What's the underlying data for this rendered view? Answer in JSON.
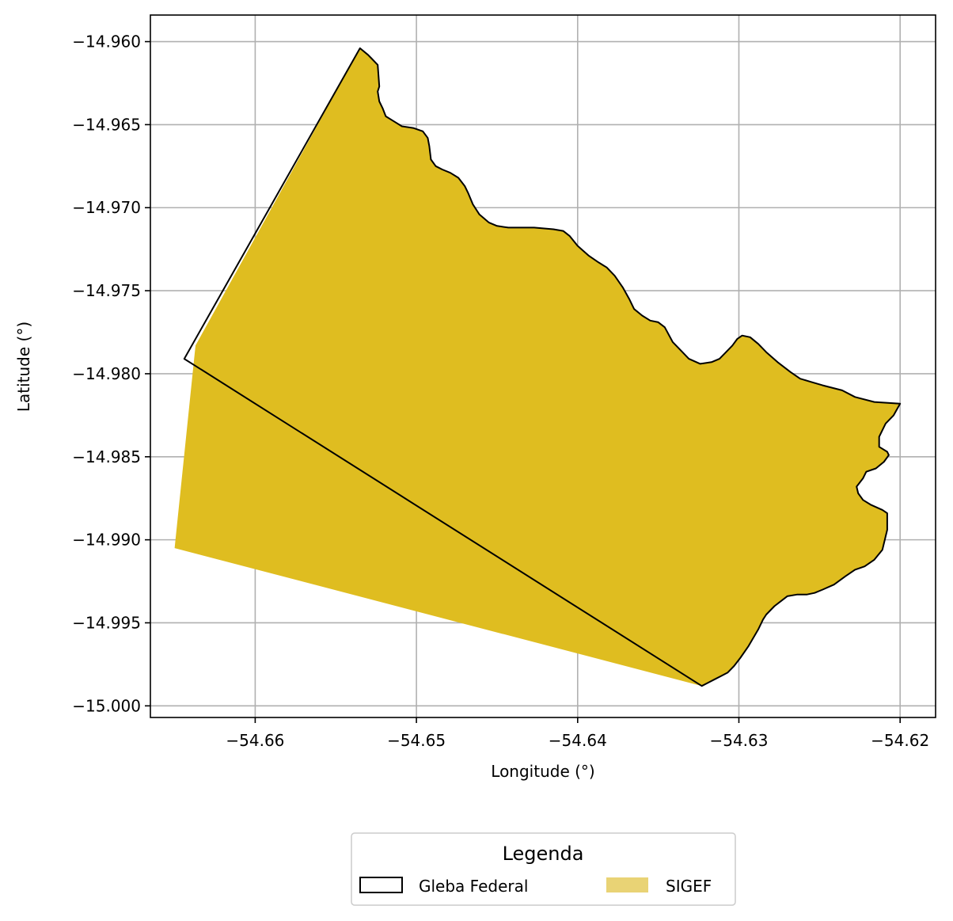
{
  "chart_data": {
    "type": "map",
    "xlabel": "Longitude (°)",
    "ylabel": "Latitude (°)",
    "xlim": [
      -54.6665,
      -54.6178
    ],
    "ylim": [
      -15.0007,
      -14.9584
    ],
    "x_ticks": [
      -54.66,
      -54.65,
      -54.64,
      -54.63,
      -54.62
    ],
    "x_tick_labels": [
      "−54.66",
      "−54.65",
      "−54.64",
      "−54.63",
      "−54.62"
    ],
    "y_ticks": [
      -14.96,
      -14.965,
      -14.97,
      -14.975,
      -14.98,
      -14.985,
      -14.99,
      -14.995,
      -15.0
    ],
    "y_tick_labels": [
      "−14.960",
      "−14.965",
      "−14.970",
      "−14.975",
      "−14.980",
      "−14.985",
      "−14.990",
      "−14.995",
      "−15.000"
    ],
    "grid": true,
    "legend": {
      "title": "Legenda",
      "placement": "bottom-center",
      "entries": [
        {
          "name": "Gleba Federal",
          "style": "outline",
          "color": "#000000"
        },
        {
          "name": "SIGEF",
          "style": "fill",
          "color": "#e9d375"
        }
      ]
    },
    "colors": {
      "sigef_fill": "#dfbd20",
      "gleba_edge": "#000000",
      "grid": "#b0b0b0"
    },
    "northeast_boundary": [
      [
        -54.6535,
        -14.9604
      ],
      [
        -54.653,
        -14.9608
      ],
      [
        -54.6528,
        -14.961
      ],
      [
        -54.6524,
        -14.9614
      ],
      [
        -54.6523,
        -14.9627
      ],
      [
        -54.6524,
        -14.963
      ],
      [
        -54.6523,
        -14.9636
      ],
      [
        -54.6521,
        -14.964
      ],
      [
        -54.6519,
        -14.9645
      ],
      [
        -54.6514,
        -14.9648
      ],
      [
        -54.6509,
        -14.9651
      ],
      [
        -54.6502,
        -14.9652
      ],
      [
        -54.6496,
        -14.9654
      ],
      [
        -54.6493,
        -14.9658
      ],
      [
        -54.6492,
        -14.9663
      ],
      [
        -54.6491,
        -14.9671
      ],
      [
        -54.6488,
        -14.9675
      ],
      [
        -54.6484,
        -14.9677
      ],
      [
        -54.6479,
        -14.9679
      ],
      [
        -54.6474,
        -14.9682
      ],
      [
        -54.647,
        -14.9687
      ],
      [
        -54.6468,
        -14.9691
      ],
      [
        -54.6465,
        -14.9698
      ],
      [
        -54.6461,
        -14.9704
      ],
      [
        -54.6455,
        -14.9709
      ],
      [
        -54.645,
        -14.9711
      ],
      [
        -54.6443,
        -14.9712
      ],
      [
        -54.6427,
        -14.9712
      ],
      [
        -54.6415,
        -14.9713
      ],
      [
        -54.6409,
        -14.9714
      ],
      [
        -54.6405,
        -14.9717
      ],
      [
        -54.64,
        -14.9723
      ],
      [
        -54.6393,
        -14.9729
      ],
      [
        -54.6387,
        -14.9733
      ],
      [
        -54.6382,
        -14.9736
      ],
      [
        -54.6377,
        -14.9741
      ],
      [
        -54.6372,
        -14.9748
      ],
      [
        -54.6368,
        -14.9755
      ],
      [
        -54.6365,
        -14.9761
      ],
      [
        -54.636,
        -14.9765
      ],
      [
        -54.6355,
        -14.9768
      ],
      [
        -54.635,
        -14.9769
      ],
      [
        -54.6346,
        -14.9772
      ],
      [
        -54.6341,
        -14.9781
      ],
      [
        -54.6336,
        -14.9786
      ],
      [
        -54.6331,
        -14.9791
      ],
      [
        -54.6324,
        -14.9794
      ],
      [
        -54.6317,
        -14.9793
      ],
      [
        -54.6312,
        -14.9791
      ],
      [
        -54.6308,
        -14.9787
      ],
      [
        -54.6304,
        -14.9783
      ],
      [
        -54.6301,
        -14.9779
      ],
      [
        -54.6298,
        -14.9777
      ],
      [
        -54.6293,
        -14.9778
      ],
      [
        -54.6288,
        -14.9782
      ],
      [
        -54.6283,
        -14.9787
      ],
      [
        -54.6276,
        -14.9793
      ],
      [
        -54.6268,
        -14.9799
      ],
      [
        -54.6262,
        -14.9803
      ],
      [
        -54.6255,
        -14.9805
      ],
      [
        -54.6248,
        -14.9807
      ],
      [
        -54.6236,
        -14.981
      ],
      [
        -54.6228,
        -14.9814
      ],
      [
        -54.6216,
        -14.9817
      ],
      [
        -54.62,
        -14.9818
      ],
      [
        -54.6204,
        -14.9825
      ],
      [
        -54.6209,
        -14.983
      ],
      [
        -54.6211,
        -14.9834
      ],
      [
        -54.6213,
        -14.9838
      ],
      [
        -54.6213,
        -14.9844
      ],
      [
        -54.6208,
        -14.9847
      ],
      [
        -54.6207,
        -14.9849
      ],
      [
        -54.621,
        -14.9853
      ],
      [
        -54.6215,
        -14.9857
      ],
      [
        -54.6221,
        -14.9859
      ],
      [
        -54.6223,
        -14.9863
      ],
      [
        -54.6227,
        -14.9868
      ],
      [
        -54.6226,
        -14.9872
      ],
      [
        -54.6223,
        -14.9876
      ],
      [
        -54.6218,
        -14.9879
      ],
      [
        -54.6211,
        -14.9882
      ],
      [
        -54.6208,
        -14.9884
      ],
      [
        -54.6208,
        -14.9894
      ],
      [
        -54.6211,
        -14.9906
      ],
      [
        -54.6216,
        -14.9912
      ],
      [
        -54.6222,
        -14.9916
      ],
      [
        -54.6228,
        -14.9918
      ],
      [
        -54.6234,
        -14.9922
      ],
      [
        -54.6241,
        -14.9927
      ],
      [
        -54.6248,
        -14.993
      ],
      [
        -54.6253,
        -14.9932
      ],
      [
        -54.6258,
        -14.9933
      ],
      [
        -54.6264,
        -14.9933
      ],
      [
        -54.627,
        -14.9934
      ],
      [
        -54.6278,
        -14.994
      ],
      [
        -54.6283,
        -14.9945
      ],
      [
        -54.6285,
        -14.9948
      ],
      [
        -54.6288,
        -14.9954
      ],
      [
        -54.6294,
        -14.9964
      ],
      [
        -54.6299,
        -14.9971
      ],
      [
        -54.6303,
        -14.9976
      ],
      [
        -54.6307,
        -14.998
      ],
      [
        -54.6311,
        -14.9982
      ],
      [
        -54.6315,
        -14.9984
      ],
      [
        -54.6319,
        -14.9986
      ],
      [
        -54.6323,
        -14.9988
      ]
    ],
    "gleba_federal_closure": [
      [
        -54.6644,
        -14.9791
      ],
      [
        -54.6535,
        -14.9604
      ]
    ],
    "sigef_southwest_corner": [
      [
        -54.665,
        -14.9905
      ],
      [
        -54.6637,
        -14.9783
      ],
      [
        -54.6535,
        -14.9604
      ]
    ]
  }
}
